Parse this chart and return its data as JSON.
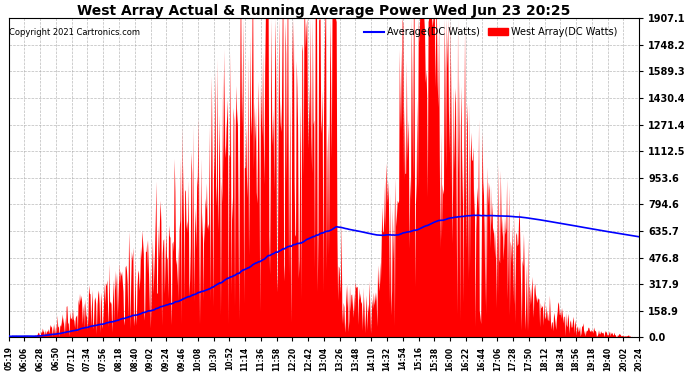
{
  "title": "West Array Actual & Running Average Power Wed Jun 23 20:25",
  "copyright": "Copyright 2021 Cartronics.com",
  "legend_avg": "Average(DC Watts)",
  "legend_west": "West Array(DC Watts)",
  "ylabel_values": [
    0.0,
    158.9,
    317.9,
    476.8,
    635.7,
    794.6,
    953.6,
    1112.5,
    1271.4,
    1430.4,
    1589.3,
    1748.2,
    1907.1
  ],
  "ymax": 1907.1,
  "bg_color": "#ffffff",
  "grid_color": "#aaaaaa",
  "red_color": "#ff0000",
  "blue_color": "#0000ff",
  "title_color": "#000000",
  "xtick_labels": [
    "05:19",
    "06:06",
    "06:28",
    "06:50",
    "07:12",
    "07:34",
    "07:56",
    "08:18",
    "08:40",
    "09:02",
    "09:24",
    "09:46",
    "10:08",
    "10:30",
    "10:52",
    "11:14",
    "11:36",
    "11:58",
    "12:20",
    "12:42",
    "13:04",
    "13:26",
    "13:48",
    "14:10",
    "14:32",
    "14:54",
    "15:16",
    "15:38",
    "16:00",
    "16:22",
    "16:44",
    "17:06",
    "17:28",
    "17:50",
    "18:12",
    "18:34",
    "18:56",
    "19:18",
    "19:40",
    "20:02",
    "20:24"
  ]
}
